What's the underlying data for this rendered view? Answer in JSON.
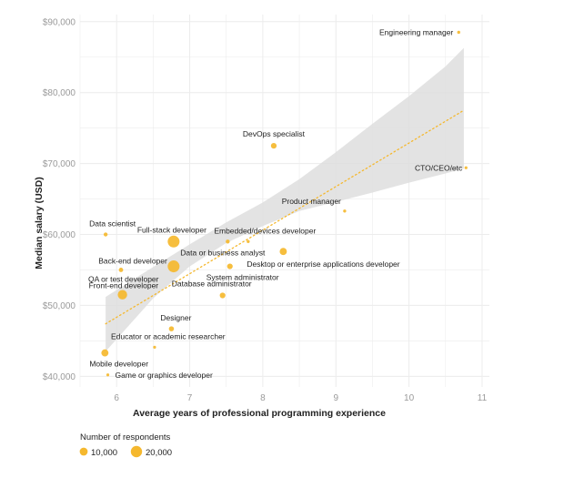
{
  "chart_data": {
    "type": "scatter",
    "title": "",
    "xlabel": "Average years of professional programming experience",
    "ylabel": "Median salary (USD)",
    "xlim": [
      5.5,
      11.1
    ],
    "ylim": [
      38500,
      91000
    ],
    "x_ticks": [
      6,
      7,
      8,
      9,
      10,
      11
    ],
    "y_ticks": [
      40000,
      50000,
      60000,
      70000,
      80000,
      90000
    ],
    "y_tick_labels": [
      "$40,000",
      "$50,000",
      "$60,000",
      "$70,000",
      "$80,000",
      "$90,000"
    ],
    "grid": true,
    "colors": {
      "points": "#f5b82e",
      "trend": "#f5b82e",
      "confidence_band": "#dedede",
      "grid": "#ececec"
    },
    "trend_line": {
      "x": [
        5.85,
        10.75
      ],
      "y": [
        47400,
        77500
      ]
    },
    "confidence_band": {
      "x": [
        5.85,
        6.5,
        7.0,
        7.5,
        8.0,
        8.5,
        9.0,
        9.5,
        10.0,
        10.5,
        10.75
      ],
      "lower": [
        43500,
        51000,
        55500,
        58800,
        61200,
        63300,
        64600,
        65900,
        67300,
        68600,
        69300
      ],
      "upper": [
        51200,
        55400,
        58600,
        61700,
        64500,
        67800,
        71600,
        75600,
        79500,
        83700,
        86300
      ]
    },
    "points": [
      {
        "label": "Engineering manager",
        "x": 10.68,
        "y": 88500,
        "respondents": 1500,
        "label_anchor": "end",
        "label_dx": -6,
        "label_dy": 3
      },
      {
        "label": "DevOps specialist",
        "x": 8.15,
        "y": 72500,
        "respondents": 5000,
        "label_anchor": "middle",
        "label_dx": 0,
        "label_dy": -10
      },
      {
        "label": "CTO/CEO/etc",
        "x": 10.78,
        "y": 69400,
        "respondents": 800,
        "label_anchor": "end",
        "label_dx": -4,
        "label_dy": 3
      },
      {
        "label": "Product manager",
        "x": 9.12,
        "y": 63300,
        "respondents": 1500,
        "label_anchor": "end",
        "label_dx": -4,
        "label_dy": -8
      },
      {
        "label": "Data scientist",
        "x": 5.85,
        "y": 60000,
        "respondents": 2500,
        "label_anchor": "start",
        "label_dx": -18,
        "label_dy": -9
      },
      {
        "label": "Full-stack developer",
        "x": 6.78,
        "y": 59000,
        "respondents": 22000,
        "label_anchor": "start",
        "label_dx": -40,
        "label_dy": -10
      },
      {
        "label": "Embedded/devices developer",
        "x": 7.52,
        "y": 59000,
        "respondents": 2500,
        "label_anchor": "start",
        "label_dx": -15,
        "label_dy": -9
      },
      {
        "label": "Data or business analyst",
        "x": 7.8,
        "y": 59000,
        "respondents": 1500,
        "label_anchor": "middle",
        "label_dx": -28,
        "label_dy": 15
      },
      {
        "label": "Desktop or enterprise applications developer",
        "x": 8.28,
        "y": 57600,
        "respondents": 8000,
        "label_anchor": "start",
        "label_dx": -40,
        "label_dy": 17
      },
      {
        "label": "Back-end developer",
        "x": 6.78,
        "y": 55500,
        "respondents": 22000,
        "label_anchor": "end",
        "label_dx": -7,
        "label_dy": -3
      },
      {
        "label": "System administrator",
        "x": 7.55,
        "y": 55500,
        "respondents": 5000,
        "label_anchor": "start",
        "label_dx": -26,
        "label_dy": 15
      },
      {
        "label": "QA or test developer",
        "x": 6.06,
        "y": 55000,
        "respondents": 3000,
        "label_anchor": "start",
        "label_dx": -36,
        "label_dy": 13
      },
      {
        "label": "Database administrator",
        "x": 7.45,
        "y": 51400,
        "respondents": 5000,
        "label_anchor": "middle",
        "label_dx": -12,
        "label_dy": -10
      },
      {
        "label": "Front-end developer",
        "x": 6.08,
        "y": 51500,
        "respondents": 14000,
        "label_anchor": "start",
        "label_dx": -37,
        "label_dy": -7
      },
      {
        "label": "Designer",
        "x": 6.75,
        "y": 46700,
        "respondents": 4000,
        "label_anchor": "middle",
        "label_dx": 5,
        "label_dy": -9
      },
      {
        "label": "Educator or academic researcher",
        "x": 6.52,
        "y": 44100,
        "respondents": 800,
        "label_anchor": "start",
        "label_dx": -48,
        "label_dy": -9
      },
      {
        "label": "Mobile developer",
        "x": 5.84,
        "y": 43300,
        "respondents": 8000,
        "label_anchor": "start",
        "label_dx": -17,
        "label_dy": 15
      },
      {
        "label": "Game or graphics developer",
        "x": 5.88,
        "y": 40200,
        "respondents": 800,
        "label_anchor": "start",
        "label_dx": 8,
        "label_dy": 3
      }
    ],
    "legend": {
      "title": "Number of respondents",
      "placement": "bottom-left",
      "entries": [
        {
          "label": "10,000",
          "respondents": 10000
        },
        {
          "label": "20,000",
          "respondents": 20000
        }
      ]
    }
  }
}
